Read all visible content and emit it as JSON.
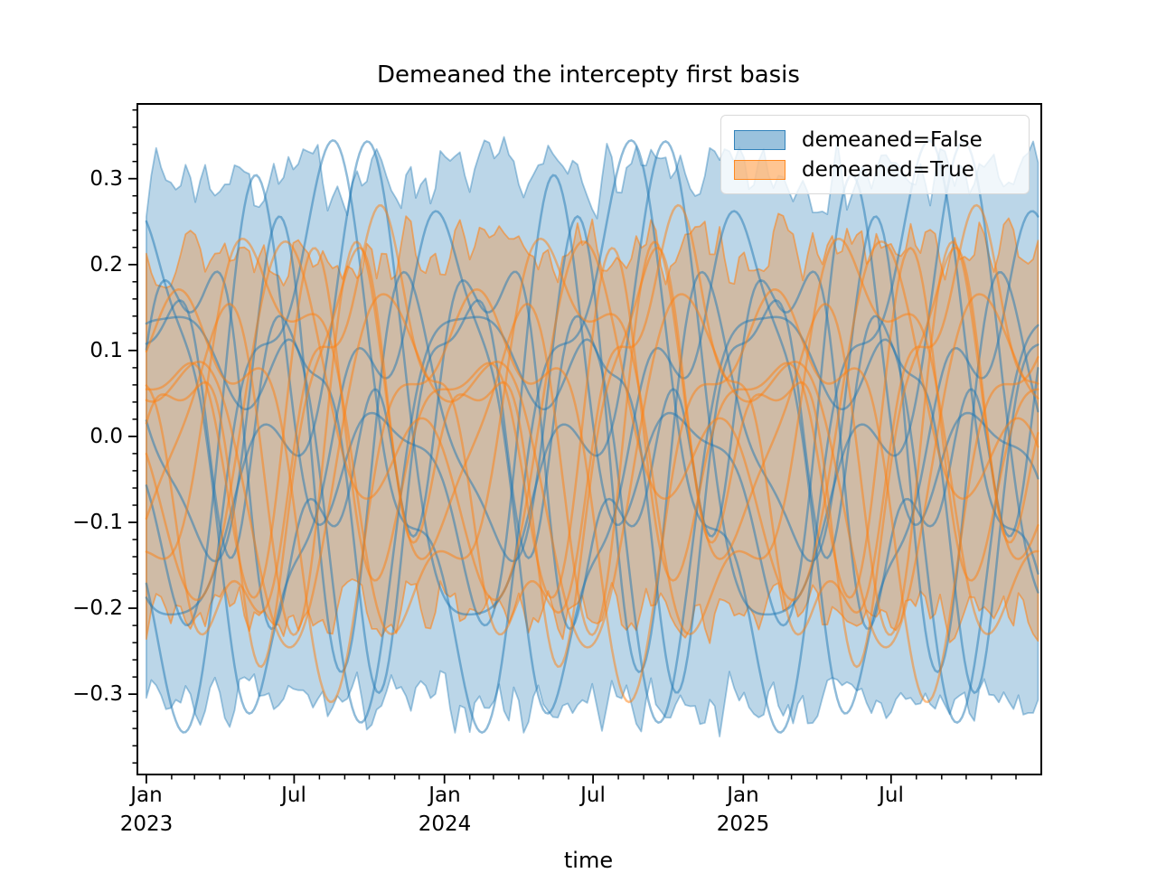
{
  "chart_data": {
    "type": "line",
    "title": "Demeaned the intercepty first basis",
    "xlabel": "time",
    "ylabel": "",
    "grid": false,
    "legend_position": "upper right",
    "legend": [
      {
        "label": "demeaned=False",
        "color": "#1f77b4"
      },
      {
        "label": "demeaned=True",
        "color": "#ff7f0e"
      }
    ],
    "ylim": [
      -0.3935,
      0.387
    ],
    "y_major_ticks": [
      0.3,
      0.2,
      0.1,
      0.0,
      -0.1,
      -0.2,
      -0.3
    ],
    "ytick_labels": [
      "0.3",
      "0.2",
      "0.1",
      "0.0",
      "−0.1",
      "−0.2",
      "−0.3"
    ],
    "y_minor_step": 0.02,
    "x_epoch": "Jan 2023",
    "x_span_days": 1092,
    "x_pad_days": 11,
    "x_pad_right_days": 4,
    "x_major_tick_days": [
      0,
      181,
      365,
      547,
      731,
      912
    ],
    "xtick_month_labels": [
      "Jan",
      "Jul",
      "Jan",
      "Jul",
      "Jan",
      "Jul"
    ],
    "xtick_year_labels": [
      "2023",
      "2024",
      "2025"
    ],
    "x_minor_tick_days": [
      31,
      59,
      90,
      120,
      151,
      212,
      243,
      273,
      304,
      334,
      396,
      425,
      456,
      486,
      517,
      578,
      609,
      639,
      670,
      700,
      762,
      790,
      821,
      851,
      882,
      943,
      974,
      1004,
      1035,
      1065
    ],
    "period_days": 365,
    "bands": [
      {
        "group": "demeaned=False",
        "color": "#1f77b4",
        "fill_alpha": 0.3,
        "edge_alpha": 0.4,
        "upper_mean": 0.302,
        "upper_noise": 0.05,
        "lower_mean": -0.31,
        "lower_noise": 0.042,
        "step_days": 6,
        "seed": 7
      },
      {
        "group": "demeaned=True",
        "color": "#ff7f0e",
        "fill_alpha": 0.3,
        "edge_alpha": 0.55,
        "upper_mean": 0.216,
        "upper_noise": 0.045,
        "lower_mean": -0.203,
        "lower_noise": 0.04,
        "step_days": 6,
        "seed": 13
      }
    ],
    "curves": [
      {
        "group": "demeaned=False",
        "color": "#1f77b4",
        "terms": [
          [
            1,
            0.17,
            0.3
          ],
          [
            2,
            0.12,
            1.7
          ],
          [
            3,
            0.05,
            4.0
          ]
        ]
      },
      {
        "group": "demeaned=False",
        "color": "#1f77b4",
        "terms": [
          [
            1,
            0.23,
            2.1
          ],
          [
            2,
            0.08,
            0.5
          ],
          [
            4,
            0.04,
            2.8
          ]
        ]
      },
      {
        "group": "demeaned=False",
        "color": "#1f77b4",
        "terms": [
          [
            1,
            0.1,
            5.0
          ],
          [
            2,
            0.15,
            3.3
          ],
          [
            3,
            0.07,
            1.1
          ]
        ]
      },
      {
        "group": "demeaned=False",
        "color": "#1f77b4",
        "terms": [
          [
            1,
            0.28,
            4.2
          ],
          [
            3,
            0.08,
            2.0
          ]
        ]
      },
      {
        "group": "demeaned=False",
        "color": "#1f77b4",
        "terms": [
          [
            1,
            0.13,
            1.0
          ],
          [
            2,
            0.1,
            5.6
          ],
          [
            4,
            0.07,
            0.9
          ]
        ]
      },
      {
        "group": "demeaned=False",
        "color": "#1f77b4",
        "terms": [
          [
            2,
            0.19,
            2.6
          ],
          [
            3,
            0.09,
            5.2
          ]
        ]
      },
      {
        "group": "demeaned=False",
        "color": "#1f77b4",
        "terms": [
          [
            1,
            0.21,
            3.6
          ],
          [
            2,
            0.11,
            4.4
          ],
          [
            3,
            0.05,
            0.2
          ]
        ]
      },
      {
        "group": "demeaned=False",
        "color": "#1f77b4",
        "terms": [
          [
            1,
            0.08,
            0.0
          ],
          [
            2,
            0.16,
            1.2
          ],
          [
            4,
            0.06,
            3.9
          ]
        ]
      },
      {
        "group": "demeaned=True",
        "color": "#ff7f0e",
        "terms": [
          [
            1,
            0.15,
            1.9
          ],
          [
            2,
            0.1,
            4.8
          ]
        ]
      },
      {
        "group": "demeaned=True",
        "color": "#ff7f0e",
        "terms": [
          [
            1,
            0.21,
            5.3
          ],
          [
            3,
            0.06,
            2.4
          ]
        ]
      },
      {
        "group": "demeaned=True",
        "color": "#ff7f0e",
        "terms": [
          [
            2,
            0.14,
            0.7
          ],
          [
            3,
            0.08,
            3.6
          ]
        ]
      },
      {
        "group": "demeaned=True",
        "color": "#ff7f0e",
        "terms": [
          [
            1,
            0.09,
            2.9
          ],
          [
            2,
            0.15,
            5.9
          ],
          [
            4,
            0.05,
            1.5
          ]
        ]
      },
      {
        "group": "demeaned=True",
        "color": "#ff7f0e",
        "terms": [
          [
            1,
            0.18,
            0.8
          ],
          [
            2,
            0.07,
            3.1
          ],
          [
            3,
            0.06,
            5.7
          ]
        ]
      },
      {
        "group": "demeaned=True",
        "color": "#ff7f0e",
        "terms": [
          [
            1,
            0.12,
            4.5
          ],
          [
            2,
            0.12,
            2.2
          ]
        ]
      },
      {
        "group": "demeaned=True",
        "color": "#ff7f0e",
        "terms": [
          [
            1,
            0.22,
            3.0
          ],
          [
            4,
            0.05,
            0.6
          ]
        ]
      },
      {
        "group": "demeaned=True",
        "color": "#ff7f0e",
        "terms": [
          [
            2,
            0.17,
            5.0
          ],
          [
            3,
            0.07,
            1.3
          ]
        ]
      }
    ],
    "curve_linewidth": 2.5,
    "curve_alpha": 0.5
  }
}
